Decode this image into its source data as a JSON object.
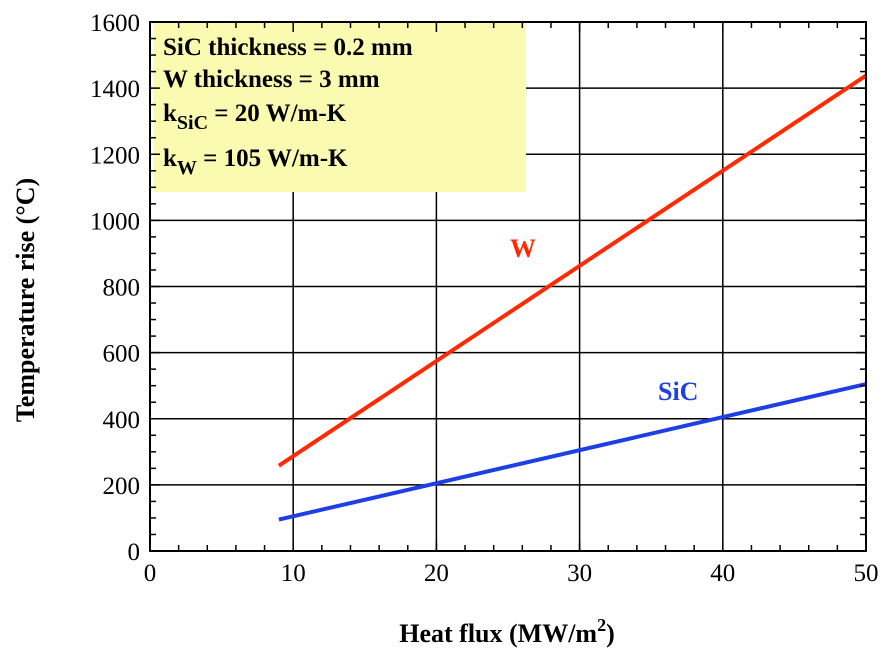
{
  "chart_data": {
    "type": "line",
    "xlabel": "Heat flux (MW/m",
    "xlabel_sup": "2",
    "xlabel_end": ")",
    "ylabel": "Temperature rise (°C)",
    "xlim": [
      0,
      50
    ],
    "ylim": [
      0,
      1600
    ],
    "xticks": [
      0,
      10,
      20,
      30,
      40,
      50
    ],
    "yticks": [
      0,
      200,
      400,
      600,
      800,
      1000,
      1200,
      1400,
      1600
    ],
    "grid": true,
    "series": [
      {
        "name": "W",
        "color": "#ff2a00",
        "x": [
          9,
          50
        ],
        "y": [
          258,
          1438
        ]
      },
      {
        "name": "SiC",
        "color": "#1f3fe6",
        "x": [
          9,
          50
        ],
        "y": [
          95,
          505
        ]
      }
    ],
    "annotation_box": {
      "background": "#fafab0",
      "line1": "SiC thickness = 0.2 mm",
      "line2": "W thickness = 3 mm",
      "line3_k": "k",
      "line3_sub": "SiC",
      "line3_rest": " = 20 W/m-K",
      "line4_k": "k",
      "line4_sub": "W",
      "line4_rest": " = 105 W/m-K"
    }
  }
}
